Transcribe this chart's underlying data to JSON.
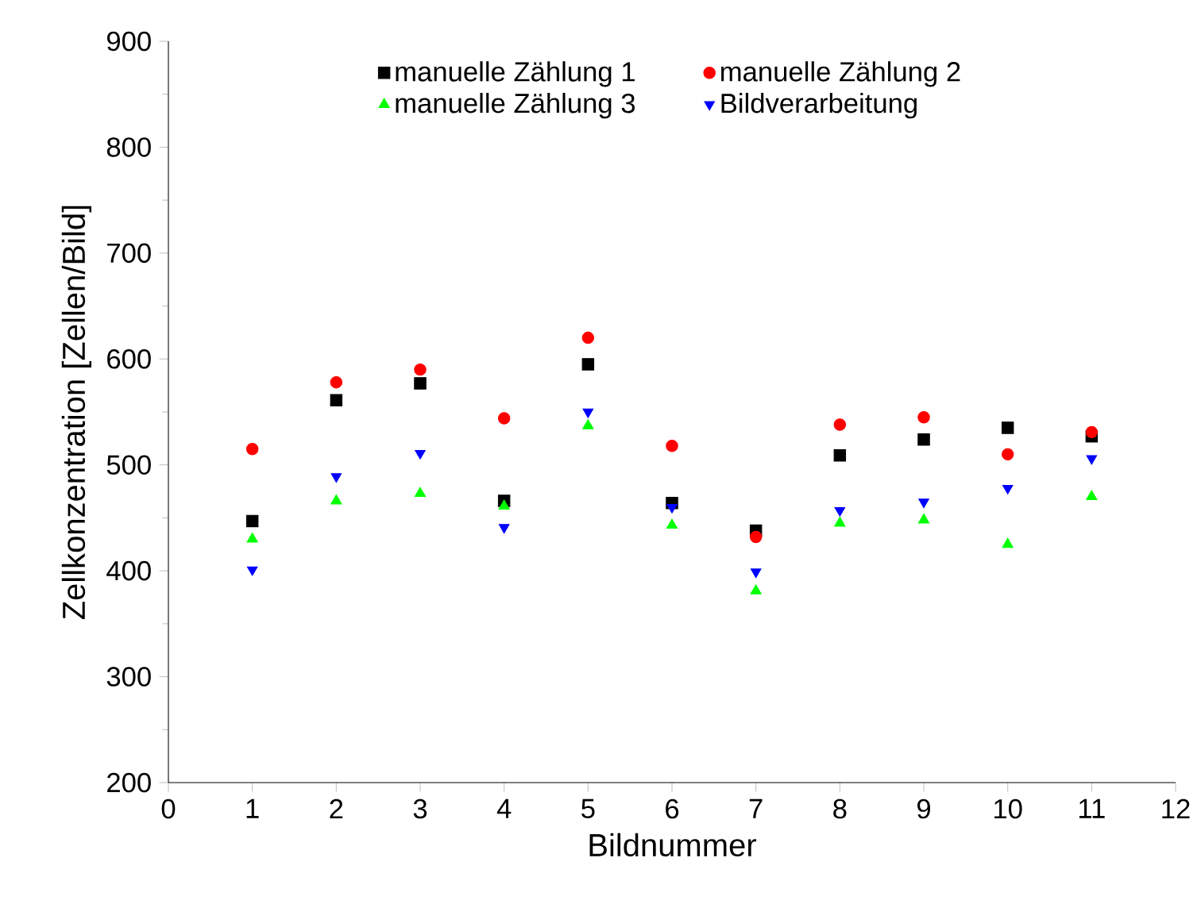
{
  "chart_data": {
    "type": "scatter",
    "xlabel": "Bildnummer",
    "ylabel": "Zellkonzentration [Zellen/Bild]",
    "x": [
      1,
      2,
      3,
      4,
      5,
      6,
      7,
      8,
      9,
      10,
      11
    ],
    "series": [
      {
        "name": "manuelle Zählung 1",
        "color": "#000000",
        "marker": "square",
        "values": [
          447,
          561,
          577,
          466,
          595,
          464,
          438,
          509,
          524,
          535,
          527
        ]
      },
      {
        "name": "manuelle Zählung 2",
        "color": "#ff0000",
        "marker": "circle",
        "values": [
          515,
          578,
          590,
          544,
          620,
          518,
          432,
          538,
          545,
          510,
          531
        ]
      },
      {
        "name": "manuelle Zählung 3",
        "color": "#00ff00",
        "marker": "triangle",
        "values": [
          430,
          466,
          473,
          461,
          537,
          443,
          381,
          445,
          448,
          425,
          470
        ]
      },
      {
        "name": "Bildverarbeitung",
        "color": "#0000ff",
        "marker": "triangle down",
        "values": [
          401,
          489,
          511,
          441,
          550,
          460,
          399,
          457,
          465,
          478,
          506
        ]
      }
    ],
    "xlim": [
      0,
      12
    ],
    "ylim": [
      200,
      900
    ],
    "xticks": [
      0,
      1,
      2,
      3,
      4,
      5,
      6,
      7,
      8,
      9,
      10,
      11,
      12
    ],
    "yticks": [
      200,
      300,
      400,
      500,
      600,
      700,
      800,
      900
    ],
    "grid": false,
    "legend": "top"
  }
}
